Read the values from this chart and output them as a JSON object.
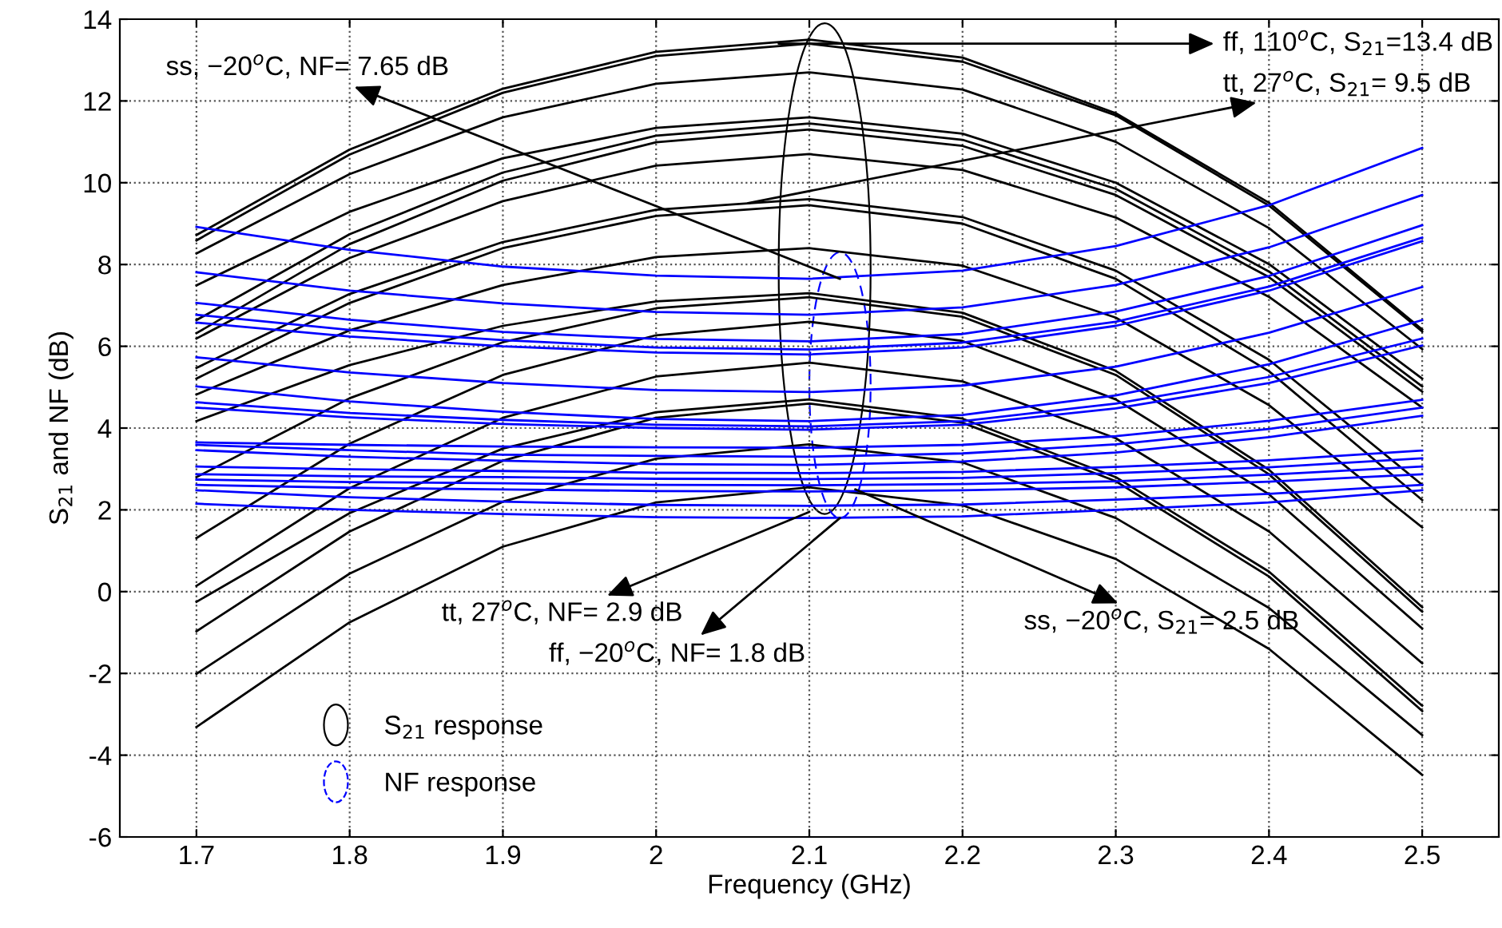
{
  "chart_data": {
    "type": "line",
    "xlabel": "Frequency (GHz)",
    "ylabel": "S$_{21}$ and NF (dB)",
    "x": [
      1.7,
      1.8,
      1.9,
      2.0,
      2.1,
      2.2,
      2.3,
      2.4,
      2.5
    ],
    "xlim": [
      1.65,
      2.55
    ],
    "xticks": [
      1.7,
      1.8,
      1.9,
      2,
      2.1,
      2.2,
      2.3,
      2.4,
      2.5
    ],
    "ylim": [
      -6,
      14
    ],
    "yticks": [
      -6,
      -4,
      -2,
      0,
      2,
      4,
      6,
      8,
      10,
      12,
      14
    ],
    "grid": true,
    "line_style": "solid",
    "marker": "none",
    "legend": "bottom left",
    "series": [
      {
        "name": "S$_{21}$ response",
        "color": "#000000",
        "values": [
          8.72,
          10.81,
          12.3,
          13.2,
          13.5,
          13.06,
          11.7,
          9.51,
          6.41
        ]
      },
      {
        "color": "#000000",
        "values": [
          8.59,
          10.69,
          12.2,
          13.1,
          13.4,
          12.96,
          11.65,
          9.44,
          6.36
        ]
      },
      {
        "color": "#000000",
        "values": [
          8.27,
          10.21,
          11.6,
          12.42,
          12.7,
          12.28,
          11.0,
          8.89,
          5.93
        ]
      },
      {
        "color": "#000000",
        "values": [
          7.49,
          9.29,
          10.6,
          11.34,
          11.6,
          11.2,
          10.0,
          8.01,
          5.21
        ]
      },
      {
        "color": "#000000",
        "values": [
          6.64,
          8.74,
          10.25,
          11.15,
          11.45,
          11.05,
          9.85,
          7.83,
          5.02
        ]
      },
      {
        "color": "#000000",
        "values": [
          6.32,
          8.5,
          10.05,
          10.99,
          11.3,
          10.9,
          9.7,
          7.69,
          4.89
        ]
      },
      {
        "color": "#000000",
        "values": [
          6.19,
          8.16,
          9.55,
          10.42,
          10.7,
          10.31,
          9.15,
          7.21,
          4.5
        ]
      },
      {
        "color": "#000000",
        "values": [
          5.47,
          7.28,
          8.55,
          9.34,
          9.6,
          9.16,
          7.85,
          5.67,
          2.61
        ]
      },
      {
        "color": "#000000",
        "values": [
          5.21,
          7.06,
          8.4,
          9.19,
          9.45,
          9.0,
          7.65,
          5.39,
          2.24
        ]
      },
      {
        "color": "#000000",
        "values": [
          4.82,
          6.39,
          7.5,
          8.18,
          8.4,
          7.97,
          6.7,
          4.56,
          1.57
        ]
      },
      {
        "color": "#000000",
        "values": [
          4.17,
          5.54,
          6.5,
          7.1,
          7.3,
          6.82,
          5.4,
          2.98,
          -0.38
        ]
      },
      {
        "color": "#000000",
        "values": [
          2.8,
          4.73,
          6.1,
          6.93,
          7.2,
          6.72,
          5.3,
          2.87,
          -0.49
        ]
      },
      {
        "color": "#000000",
        "values": [
          1.31,
          3.62,
          5.3,
          6.27,
          6.6,
          6.13,
          4.7,
          2.38,
          -0.9
        ]
      },
      {
        "color": "#000000",
        "values": [
          0.14,
          2.53,
          4.25,
          5.26,
          5.6,
          5.14,
          3.75,
          1.47,
          -1.75
        ]
      },
      {
        "color": "#000000",
        "values": [
          -0.25,
          1.92,
          3.5,
          4.39,
          4.7,
          4.23,
          2.8,
          0.49,
          -2.79
        ]
      },
      {
        "color": "#000000",
        "values": [
          -0.97,
          1.47,
          3.2,
          4.25,
          4.6,
          4.13,
          2.7,
          0.37,
          -2.92
        ]
      },
      {
        "color": "#000000",
        "values": [
          -2.01,
          0.44,
          2.2,
          3.25,
          3.6,
          3.16,
          1.8,
          -0.4,
          -3.51
        ]
      },
      {
        "color": "#000000",
        "values": [
          -3.31,
          -0.75,
          1.1,
          2.18,
          2.55,
          2.11,
          0.8,
          -1.4,
          -4.48
        ]
      },
      {
        "name": "NF response",
        "color": "#0000ff",
        "values": [
          8.92,
          8.36,
          7.95,
          7.73,
          7.65,
          7.85,
          8.45,
          9.45,
          10.85
        ]
      },
      {
        "color": "#0000ff",
        "values": [
          7.81,
          7.36,
          7.05,
          6.84,
          6.77,
          6.95,
          7.5,
          8.42,
          9.7
        ]
      },
      {
        "color": "#0000ff",
        "values": [
          7.06,
          6.65,
          6.35,
          6.18,
          6.12,
          6.3,
          6.85,
          7.72,
          8.96
        ]
      },
      {
        "color": "#0000ff",
        "values": [
          6.77,
          6.4,
          6.15,
          5.97,
          5.92,
          6.09,
          6.6,
          7.46,
          8.66
        ]
      },
      {
        "color": "#0000ff",
        "values": [
          6.58,
          6.24,
          6.0,
          5.85,
          5.8,
          5.97,
          6.5,
          7.36,
          8.57
        ]
      },
      {
        "color": "#0000ff",
        "values": [
          5.73,
          5.36,
          5.1,
          4.93,
          4.88,
          5.04,
          5.5,
          6.33,
          7.45
        ]
      },
      {
        "color": "#0000ff",
        "values": [
          5.02,
          4.65,
          4.4,
          4.22,
          4.17,
          4.32,
          4.8,
          5.56,
          6.64
        ]
      },
      {
        "color": "#0000ff",
        "values": [
          4.63,
          4.37,
          4.2,
          4.08,
          4.04,
          4.17,
          4.6,
          5.25,
          6.19
        ]
      },
      {
        "color": "#0000ff",
        "values": [
          4.5,
          4.26,
          4.1,
          4.0,
          3.96,
          4.08,
          4.48,
          5.1,
          6.02
        ]
      },
      {
        "color": "#0000ff",
        "values": [
          3.65,
          3.59,
          3.55,
          3.53,
          3.52,
          3.59,
          3.8,
          4.18,
          4.69
        ]
      },
      {
        "color": "#0000ff",
        "values": [
          3.59,
          3.46,
          3.35,
          3.32,
          3.3,
          3.38,
          3.6,
          3.98,
          4.5
        ]
      },
      {
        "color": "#0000ff",
        "values": [
          3.46,
          3.3,
          3.2,
          3.12,
          3.1,
          3.18,
          3.4,
          3.78,
          4.3
        ]
      },
      {
        "color": "#0000ff",
        "values": [
          3.06,
          2.99,
          2.95,
          2.91,
          2.9,
          2.93,
          3.05,
          3.21,
          3.45
        ]
      },
      {
        "color": "#0000ff",
        "values": [
          2.87,
          2.82,
          2.8,
          2.76,
          2.75,
          2.78,
          2.9,
          3.04,
          3.26
        ]
      },
      {
        "color": "#0000ff",
        "values": [
          2.74,
          2.68,
          2.65,
          2.61,
          2.6,
          2.63,
          2.7,
          2.86,
          3.06
        ]
      },
      {
        "color": "#0000ff",
        "values": [
          2.61,
          2.54,
          2.5,
          2.46,
          2.45,
          2.48,
          2.55,
          2.69,
          2.87
        ]
      },
      {
        "color": "#0000ff",
        "values": [
          2.48,
          2.31,
          2.2,
          2.12,
          2.1,
          2.13,
          2.25,
          2.39,
          2.61
        ]
      },
      {
        "color": "#0000ff",
        "values": [
          2.15,
          2.0,
          1.9,
          1.82,
          1.8,
          1.84,
          2.0,
          2.18,
          2.48
        ]
      }
    ],
    "annotations": [
      {
        "text": "ff, 110$^{o}$C, S$_{21}$=13.4 dB",
        "x": 2.08,
        "y": 13.4
      },
      {
        "text": "tt, 27$^{o}$C, S$_{21}$= 9.5 dB",
        "x": 2.06,
        "y": 9.5
      },
      {
        "text": "ss, −20$^{o}$C, NF= 7.65 dB",
        "x": 2.12,
        "y": 7.65
      },
      {
        "text": "tt, 27$^{o}$C, NF= 2.9 dB",
        "x": 2.1,
        "y": 1.95
      },
      {
        "text": "ff, −20$^{o}$C, NF= 1.8 dB",
        "x": 2.12,
        "y": 1.8
      },
      {
        "text": "ss, −20$^{o}$C, S$_{21}$= 2.5 dB",
        "x": 2.13,
        "y": 2.5
      }
    ]
  }
}
